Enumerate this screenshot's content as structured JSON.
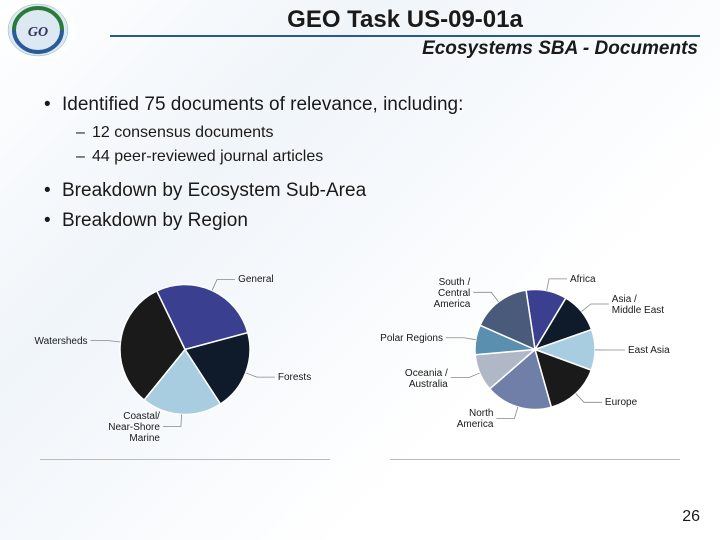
{
  "header": {
    "title": "GEO Task US-09-01a",
    "subtitle": "Ecosystems SBA - Documents"
  },
  "bullets": {
    "b1": "Identified 75 documents of relevance, including:",
    "b1a": "12 consensus documents",
    "b1b": "44 peer-reviewed journal articles",
    "b2": "Breakdown by Ecosystem Sub-Area",
    "b3": "Breakdown by Region"
  },
  "pagenum": "26",
  "chart1": {
    "type": "pie",
    "diameter": 130,
    "slices": [
      {
        "label": "General",
        "value": 28,
        "color": "#3b3f8f"
      },
      {
        "label": "Forests",
        "value": 20,
        "color": "#0f1a2a"
      },
      {
        "label": "Coastal/\nNear-Shore\nMarine",
        "value": 20,
        "color": "#a9cde0"
      },
      {
        "label": "Watersheds",
        "value": 32,
        "color": "#1a1a1a"
      }
    ],
    "label_fontsize": 10,
    "stroke": "#ffffff"
  },
  "chart2": {
    "type": "pie",
    "diameter": 120,
    "slices": [
      {
        "label": "Africa",
        "value": 11,
        "color": "#3b3f8f"
      },
      {
        "label": "Asia /\nMiddle East",
        "value": 11,
        "color": "#0f1a2a"
      },
      {
        "label": "East Asia",
        "value": 11,
        "color": "#a9cde0"
      },
      {
        "label": "Europe",
        "value": 15,
        "color": "#1a1a1a"
      },
      {
        "label": "North\nAmerica",
        "value": 18,
        "color": "#6f7fa8"
      },
      {
        "label": "Oceania /\nAustralia",
        "value": 10,
        "color": "#b0b8c8"
      },
      {
        "label": "Polar Regions",
        "value": 8,
        "color": "#5a8fb0"
      },
      {
        "label": "South /\nCentral\nAmerica",
        "value": 16,
        "color": "#4a5a7a"
      }
    ],
    "label_fontsize": 10,
    "stroke": "#ffffff"
  }
}
